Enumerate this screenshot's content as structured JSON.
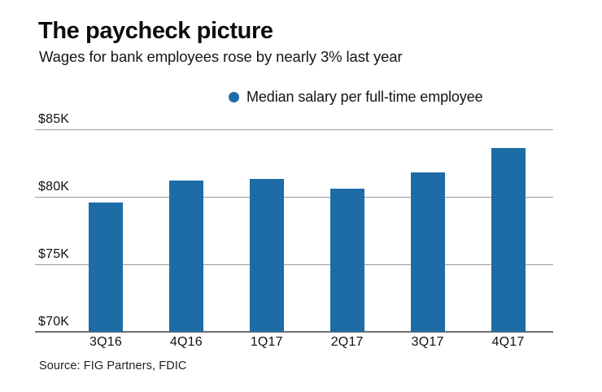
{
  "header": {
    "title": "The paycheck picture",
    "subtitle": "Wages for bank employees rose by nearly 3% last year"
  },
  "legend": {
    "label": "Median salary per full-time employee",
    "marker_color": "#1d6ca6"
  },
  "source_note": "Source: FIG Partners, FDIC",
  "colors": {
    "bar": "#1d6ca6",
    "gridline": "#9a9a9a",
    "axis_line": "#6f6f6f",
    "text": "#111111"
  },
  "chart_data": {
    "type": "bar",
    "title": "The paycheck picture",
    "subtitle": "Wages for bank employees rose by nearly 3% last year",
    "categories": [
      "3Q16",
      "4Q16",
      "1Q17",
      "2Q17",
      "3Q17",
      "4Q17"
    ],
    "series": [
      {
        "name": "Median salary per full-time employee",
        "values": [
          79.6,
          81.2,
          81.3,
          80.6,
          81.8,
          83.6
        ]
      }
    ],
    "unit": "USD thousands",
    "xlabel": "",
    "ylabel": "",
    "ylim": [
      70,
      85
    ],
    "yticks": [
      70,
      75,
      80,
      85
    ],
    "ytick_labels": [
      "$70K",
      "$75K",
      "$80K",
      "$85K"
    ],
    "grid": "horizontal",
    "legend_position": "top-center",
    "source": "Source: FIG Partners, FDIC"
  }
}
